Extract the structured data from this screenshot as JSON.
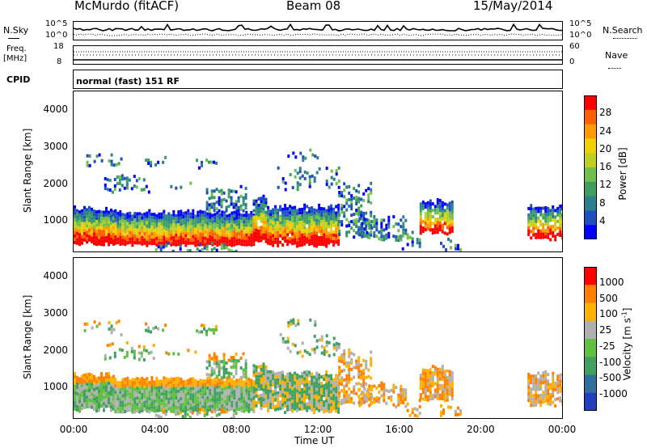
{
  "header": {
    "title_left": "McMurdo (fitACF)",
    "title_center": "Beam 08",
    "title_right": "15/May/2014"
  },
  "summary_panels": {
    "nsky_label": "N.Sky",
    "nsearch_label": "N.Search",
    "noise_ticks_left": [
      "10^5",
      "10^0"
    ],
    "noise_ticks_right": [
      "10^5",
      "10^0"
    ],
    "freq_label_1": "Freq.",
    "freq_label_2": "[MHz]",
    "freq_ticks": [
      "18",
      "8"
    ],
    "nave_label": "Nave",
    "nave_ticks": [
      "60",
      "0"
    ],
    "cpid_label": "CPID",
    "cpid_text": "normal (fast) 151 RF"
  },
  "chart_data": [
    {
      "type": "heatmap",
      "panel": "power",
      "ylabel": "Slant Range [km]",
      "yticks": [
        "4000",
        "3000",
        "2000",
        "1000"
      ],
      "ylim": [
        180,
        4500
      ],
      "colorbar_label": "Power [dB]",
      "colorbar_ticks": [
        "28",
        "24",
        "20",
        "16",
        "12",
        "8",
        "4"
      ],
      "colors": [
        "#0000ff",
        "#1e50c0",
        "#2b7f8f",
        "#3c9f5f",
        "#70c050",
        "#c0d020",
        "#f0d000",
        "#ff9a00",
        "#ff6000",
        "#ff0000"
      ],
      "note_regions": [
        {
          "t0": 0.0,
          "t1": 2.0,
          "r0": 500,
          "r1": 1300,
          "level": 9
        },
        {
          "t0": 2.0,
          "t1": 8.5,
          "r0": 450,
          "r1": 1100,
          "level": 9
        },
        {
          "t0": 9.5,
          "t1": 12.5,
          "r0": 400,
          "r1": 1300,
          "level": 9
        },
        {
          "t0": 17.0,
          "t1": 18.5,
          "r0": 600,
          "r1": 1500,
          "level": 7
        },
        {
          "t0": 22.5,
          "t1": 24.0,
          "r0": 600,
          "r1": 1300,
          "level": 8
        }
      ]
    },
    {
      "type": "heatmap",
      "panel": "velocity",
      "ylabel": "Slant Range [km]",
      "yticks": [
        "4000",
        "3000",
        "2000",
        "1000"
      ],
      "ylim": [
        180,
        4500
      ],
      "colorbar_label": "Velocity [m s",
      "colorbar_label_sup": "-1",
      "colorbar_label_end": "]",
      "colorbar_ticks": [
        "1000",
        "500",
        "100",
        "25",
        "-25",
        "-100",
        "-500",
        "-1000"
      ],
      "colors": [
        "#2040c0",
        "#3070a0",
        "#40a060",
        "#60c040",
        "#b0b0b0",
        "#ffb000",
        "#ff8000",
        "#ff0000"
      ],
      "xlabel": "Time UT",
      "xticks": [
        "00:00",
        "04:00",
        "08:00",
        "12:00",
        "16:00",
        "20:00",
        "00:00"
      ],
      "xlim": [
        0,
        24
      ]
    }
  ]
}
